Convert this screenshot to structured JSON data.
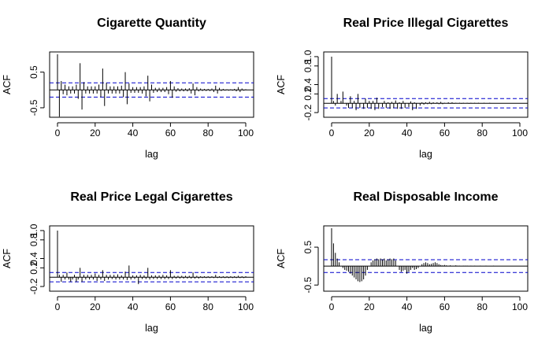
{
  "chart_data": [
    {
      "type": "acf",
      "title": "Cigarette Quantity",
      "xlabel": "lag",
      "ylabel": "ACF",
      "xlim": [
        0,
        100
      ],
      "ylim": [
        -0.7,
        1.0
      ],
      "xticks": [
        0,
        20,
        40,
        60,
        80,
        100
      ],
      "yticks": [
        -0.5,
        0.5
      ],
      "ytick_labels": [
        "-0.5",
        "0.5"
      ],
      "conf_band": 0.2,
      "max_lag": 100,
      "acf": [
        1.0,
        -0.75,
        0.25,
        -0.12,
        0.15,
        -0.15,
        0.1,
        -0.1,
        0.1,
        -0.1,
        0.15,
        -0.25,
        0.75,
        -0.55,
        0.22,
        -0.1,
        0.1,
        -0.1,
        0.1,
        -0.1,
        0.1,
        -0.1,
        0.15,
        -0.2,
        0.6,
        -0.45,
        0.2,
        -0.1,
        0.1,
        -0.1,
        0.1,
        -0.1,
        0.1,
        -0.1,
        0.12,
        -0.2,
        0.5,
        -0.4,
        0.18,
        -0.08,
        0.08,
        -0.08,
        0.08,
        -0.08,
        0.08,
        -0.1,
        0.1,
        -0.18,
        0.4,
        -0.32,
        0.15,
        -0.08,
        0.06,
        -0.06,
        0.06,
        -0.06,
        0.06,
        -0.06,
        0.08,
        -0.12,
        0.25,
        -0.22,
        0.1,
        -0.05,
        0.05,
        -0.04,
        0.04,
        -0.04,
        0.04,
        -0.04,
        0.05,
        -0.1,
        0.18,
        -0.15,
        0.08,
        -0.04,
        0.04,
        -0.03,
        0.03,
        -0.03,
        0.03,
        -0.03,
        0.04,
        -0.06,
        0.12,
        -0.1,
        0.06,
        -0.03,
        0.03,
        -0.02,
        0.02,
        -0.02,
        0.02,
        -0.02,
        0.03,
        -0.04,
        0.08,
        -0.06,
        0.04,
        -0.02,
        0.02
      ]
    },
    {
      "type": "acf",
      "title": "Real Price Illegal Cigarettes",
      "xlabel": "lag",
      "ylabel": "ACF",
      "xlim": [
        0,
        100
      ],
      "ylim": [
        -0.25,
        1.05
      ],
      "xticks": [
        0,
        20,
        40,
        60,
        80,
        100
      ],
      "yticks": [
        -0.2,
        0.2,
        0.4,
        0.8,
        1.0
      ],
      "ytick_labels": [
        "-0.2",
        "0.2",
        "0.4",
        "0.8",
        "1.0"
      ],
      "conf_band": 0.1,
      "max_lag": 85,
      "acf": [
        1.0,
        0.05,
        -0.05,
        0.2,
        0.0,
        0.05,
        0.25,
        0.0,
        -0.05,
        -0.1,
        0.15,
        -0.1,
        0.05,
        -0.15,
        0.2,
        -0.1,
        0.0,
        -0.12,
        0.1,
        -0.1,
        0.05,
        -0.12,
        0.05,
        -0.15,
        0.12,
        -0.12,
        0.0,
        -0.08,
        0.05,
        -0.1,
        0.02,
        -0.12,
        0.03,
        -0.1,
        0.06,
        -0.12,
        0.02,
        -0.12,
        0.05,
        -0.1,
        0.0,
        -0.08,
        0.04,
        -0.15,
        0.02,
        -0.12,
        0.0,
        -0.05,
        0.02,
        -0.03,
        0.02,
        -0.02,
        0.03,
        -0.02,
        0.02,
        -0.01,
        0.02,
        -0.02,
        0.03,
        -0.02,
        0.01,
        0.0,
        0.02,
        -0.01,
        0.02,
        -0.01,
        0.01,
        0.0,
        0.01,
        -0.01,
        0.01,
        0.0,
        0.01,
        -0.01,
        0.01,
        0.0,
        0.01,
        0.0,
        0.01,
        0.0,
        0.0,
        0.01,
        0.0,
        0.0,
        0.01,
        0.0
      ]
    },
    {
      "type": "acf",
      "title": "Real Price Legal Cigarettes",
      "xlabel": "lag",
      "ylabel": "ACF",
      "xlim": [
        0,
        100
      ],
      "ylim": [
        -0.25,
        1.05
      ],
      "xticks": [
        0,
        20,
        40,
        60,
        80,
        100
      ],
      "yticks": [
        -0.2,
        0.2,
        0.4,
        0.8,
        1.0
      ],
      "ytick_labels": [
        "-0.2",
        "0.2",
        "0.4",
        "0.8",
        "1.0"
      ],
      "conf_band": 0.1,
      "max_lag": 100,
      "acf": [
        1.0,
        0.05,
        -0.1,
        0.05,
        -0.05,
        0.1,
        -0.05,
        -0.1,
        -0.05,
        0.05,
        -0.1,
        -0.05,
        0.2,
        -0.1,
        0.05,
        -0.05,
        0.05,
        -0.05,
        0.05,
        -0.05,
        0.08,
        -0.08,
        0.05,
        -0.05,
        0.15,
        -0.08,
        0.05,
        -0.05,
        0.05,
        -0.04,
        0.05,
        -0.05,
        0.06,
        -0.05,
        0.04,
        -0.05,
        0.12,
        -0.06,
        0.25,
        -0.05,
        0.04,
        -0.04,
        0.04,
        -0.15,
        0.05,
        -0.04,
        0.04,
        -0.04,
        0.2,
        -0.05,
        0.04,
        -0.04,
        0.04,
        -0.04,
        0.04,
        -0.04,
        0.05,
        -0.04,
        0.04,
        -0.04,
        0.15,
        -0.04,
        0.03,
        -0.03,
        0.03,
        -0.03,
        0.03,
        -0.03,
        0.03,
        -0.03,
        0.03,
        -0.03,
        0.1,
        -0.03,
        0.03,
        -0.03,
        0.02,
        -0.02,
        0.02,
        -0.02,
        0.02,
        -0.02,
        0.02,
        -0.02,
        0.05,
        -0.02,
        0.02,
        -0.02,
        0.02,
        -0.02,
        0.02,
        -0.02,
        0.02,
        -0.02,
        0.02,
        -0.02,
        0.03,
        -0.02,
        0.02,
        -0.02,
        0.02
      ]
    },
    {
      "type": "acf",
      "title": "Real Disposable Income",
      "xlabel": "lag",
      "ylabel": "ACF",
      "xlim": [
        0,
        100
      ],
      "ylim": [
        -0.6,
        1.0
      ],
      "xticks": [
        0,
        20,
        40,
        60,
        80,
        100
      ],
      "yticks": [
        -0.5,
        0.5
      ],
      "ytick_labels": [
        "-0.5",
        "0.5"
      ],
      "conf_band": 0.17,
      "max_lag": 100,
      "acf": [
        1.0,
        0.6,
        0.35,
        0.2,
        0.1,
        0.0,
        -0.05,
        -0.1,
        -0.12,
        -0.15,
        -0.2,
        -0.25,
        -0.3,
        -0.35,
        -0.4,
        -0.42,
        -0.4,
        -0.35,
        -0.25,
        -0.1,
        0.0,
        0.1,
        0.15,
        0.18,
        0.2,
        0.18,
        0.2,
        0.18,
        0.2,
        0.15,
        0.18,
        0.2,
        0.18,
        0.2,
        0.15,
        0.0,
        -0.1,
        -0.15,
        -0.12,
        -0.1,
        -0.2,
        -0.15,
        -0.1,
        -0.05,
        -0.1,
        -0.08,
        -0.05,
        0.0,
        0.05,
        0.08,
        0.1,
        0.08,
        0.05,
        0.06,
        0.08,
        0.1,
        0.08,
        0.05,
        0.03,
        0.02,
        0.03,
        0.02,
        0.01,
        0.02,
        0.01,
        0.01,
        0.02,
        0.01,
        0.01,
        0.0,
        0.01,
        0.01,
        0.01,
        0.0,
        0.01,
        0.0,
        0.01,
        0.0,
        0.0,
        0.01,
        0.0,
        0.0,
        0.01,
        0.0,
        0.0,
        0.0,
        0.01,
        0.0,
        0.0,
        0.0,
        0.0,
        0.0,
        0.0,
        0.0,
        0.0,
        0.0,
        0.0,
        0.0,
        0.0,
        0.0,
        0.0
      ]
    }
  ],
  "colors": {
    "conf_band": "#0000CC",
    "bars": "#000000",
    "axes": "#000000"
  }
}
